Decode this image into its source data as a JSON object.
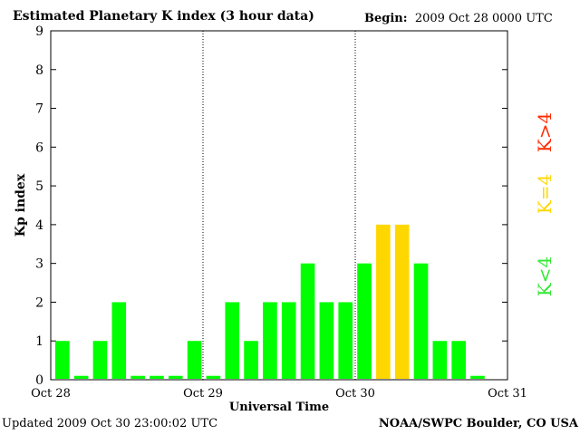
{
  "header": {
    "title": "Estimated Planetary K index (3 hour data)",
    "begin_label": "Begin:",
    "begin_value": "2009 Oct 28 0000 UTC"
  },
  "footer": {
    "updated_label": "Updated",
    "updated_value": "2009 Oct 30 23:00:02 UTC",
    "source": "NOAA/SWPC Boulder, CO USA"
  },
  "chart_data": {
    "type": "bar",
    "title": "Estimated Planetary K index (3 hour data)",
    "xlabel": "Universal Time",
    "ylabel": "Kp index",
    "ylim": [
      0,
      9
    ],
    "yticks": [
      0,
      1,
      2,
      3,
      4,
      5,
      6,
      7,
      8,
      9
    ],
    "x_tick_labels": [
      "Oct 28",
      "Oct 29",
      "Oct 30",
      "Oct 31"
    ],
    "grid": "dotted vertical lines at day boundaries",
    "values": [
      1,
      0.1,
      1,
      2,
      0.1,
      0.1,
      0.1,
      1,
      0.1,
      2,
      1,
      2,
      2,
      3,
      2,
      2,
      3,
      4,
      4,
      3,
      1,
      1,
      0.1
    ],
    "bar_colors": {
      "below_4": "#00ff00",
      "equal_4": "#ffd700",
      "above_4": "#ff2a00"
    },
    "legend": {
      "placement": "right, vertical text",
      "items": [
        {
          "label": "K<4",
          "color": "#33e833"
        },
        {
          "label": "K=4",
          "color": "#ffd700"
        },
        {
          "label": "K>4",
          "color": "#ff2a00"
        }
      ]
    }
  }
}
